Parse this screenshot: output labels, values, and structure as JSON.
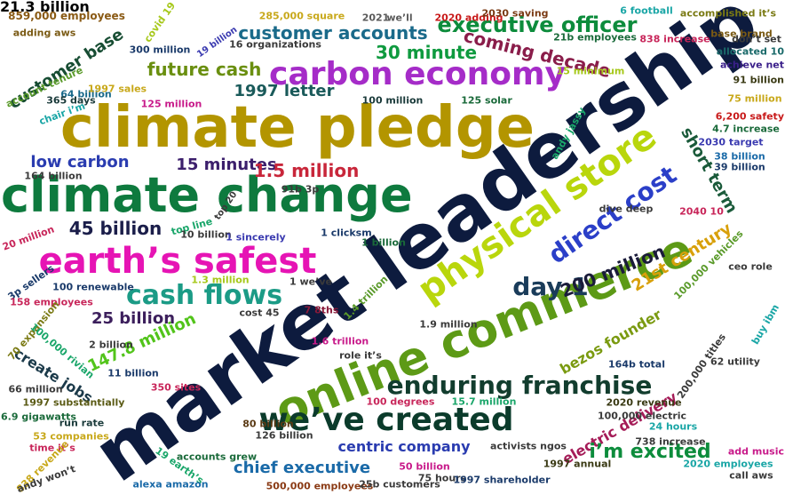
{
  "words": [
    {
      "text": "market leadership",
      "color": "#0d1b3e",
      "rotate": -35
    },
    {
      "text": "climate pledge",
      "color": "#b39500",
      "rotate": 0
    },
    {
      "text": "online commerce",
      "color": "#5d9a16",
      "rotate": -22
    },
    {
      "text": "climate change",
      "color": "#0e7a3e",
      "rotate": 0
    },
    {
      "text": "earth’s safest",
      "color": "#e614b4",
      "rotate": 0
    },
    {
      "text": "physical store",
      "color": "#b9d60c",
      "rotate": -35
    },
    {
      "text": "we’ve created",
      "color": "#0b3b2b",
      "rotate": 0
    },
    {
      "text": "carbon economy",
      "color": "#a52cc8",
      "rotate": 0
    },
    {
      "text": "enduring franchise",
      "color": "#123d2e",
      "rotate": 0
    },
    {
      "text": "direct cost",
      "color": "#2b3fc8",
      "rotate": -35
    },
    {
      "text": "cash flows",
      "color": "#1b9b86",
      "rotate": 0
    },
    {
      "text": "executive officer",
      "color": "#0d8c3c",
      "rotate": 0
    },
    {
      "text": "coming decade",
      "color": "#8a1d4a",
      "rotate": 14
    },
    {
      "text": "customer accounts",
      "color": "#1a6a8a",
      "rotate": 0
    },
    {
      "text": "customer base",
      "color": "#174d33",
      "rotate": -33
    },
    {
      "text": "future cash",
      "color": "#6a8f10",
      "rotate": 0
    },
    {
      "text": "30 minute",
      "color": "#0f9a3f",
      "rotate": 0
    },
    {
      "text": "1997 letter",
      "color": "#1a5a5a",
      "rotate": 0
    },
    {
      "text": "low carbon",
      "color": "#2a3cb0",
      "rotate": 0
    },
    {
      "text": "15 minutes",
      "color": "#3c1f6c",
      "rotate": 0
    },
    {
      "text": "1.5 million",
      "color": "#c8263a",
      "rotate": 0
    },
    {
      "text": "45 billion",
      "color": "#1b1e4a",
      "rotate": 0
    },
    {
      "text": "day 1",
      "color": "#1a3c5a",
      "rotate": 0
    },
    {
      "text": "200 million",
      "color": "#1a1b3a",
      "rotate": -22
    },
    {
      "text": "21st century",
      "color": "#d8a00a",
      "rotate": -32
    },
    {
      "text": "short term",
      "color": "#1a5a3a",
      "rotate": 60
    },
    {
      "text": "25 billion",
      "color": "#3c1f5c",
      "rotate": 0
    },
    {
      "text": "147.8 million",
      "color": "#52c41a",
      "rotate": -25
    },
    {
      "text": "create jobs",
      "color": "#1b3a4a",
      "rotate": 32
    },
    {
      "text": "bezos founder",
      "color": "#7a9a10",
      "rotate": -30
    },
    {
      "text": "centric company",
      "color": "#2a3cb0",
      "rotate": 0
    },
    {
      "text": "chief executive",
      "color": "#1a6aa8",
      "rotate": 0
    },
    {
      "text": "electric delivery",
      "color": "#a51c58",
      "rotate": -30
    },
    {
      "text": "i’m excited",
      "color": "#0d8c3c",
      "rotate": 0
    },
    {
      "text": "859,000 employees",
      "color": "#8a5a14",
      "rotate": 0
    },
    {
      "text": "adding aws",
      "color": "#7a5a14",
      "rotate": 0
    },
    {
      "text": "account tenure",
      "color": "#5a9a2a",
      "rotate": -25
    },
    {
      "text": "covid 19",
      "color": "#a6c81a",
      "rotate": -55
    },
    {
      "text": "285,000 square",
      "color": "#c8a81a",
      "rotate": 0
    },
    {
      "text": "2021",
      "color": "#5a5a5a",
      "rotate": 0
    },
    {
      "text": "we’ll",
      "color": "#5a5a5a",
      "rotate": 0
    },
    {
      "text": "2020 adding",
      "color": "#c81a1a",
      "rotate": 0
    },
    {
      "text": "2030 saving",
      "color": "#7a3a14",
      "rotate": 0
    },
    {
      "text": "6 football",
      "color": "#1aa6a6",
      "rotate": 0
    },
    {
      "text": "accomplished it’s",
      "color": "#7a7a14",
      "rotate": 0
    },
    {
      "text": "base brand",
      "color": "#7a5a14",
      "rotate": 0
    },
    {
      "text": "21b employees",
      "color": "#1a6a3a",
      "rotate": 0
    },
    {
      "text": "838 increase",
      "color": "#c8265a",
      "rotate": 0
    },
    {
      "text": "don’t set",
      "color": "#3a3a3a",
      "rotate": 0
    },
    {
      "text": "allocated 10",
      "color": "#1a6a6a",
      "rotate": 0
    },
    {
      "text": "achieve net",
      "color": "#3a1f8a",
      "rotate": 0
    },
    {
      "text": "19 billion",
      "color": "#3a3ab0",
      "rotate": -35
    },
    {
      "text": "300 million",
      "color": "#1a3a6a",
      "rotate": 0
    },
    {
      "text": "16 organizations",
      "color": "#3a3a3a",
      "rotate": 0
    },
    {
      "text": "15 minimum",
      "color": "#a6c81a",
      "rotate": 0
    },
    {
      "text": "chair i’m",
      "color": "#1aa6a6",
      "rotate": -20
    },
    {
      "text": "64 billion",
      "color": "#1a6a8a",
      "rotate": 0
    },
    {
      "text": "1997 sales",
      "color": "#c8a81a",
      "rotate": 0
    },
    {
      "text": "365 days",
      "color": "#1a3a3a",
      "rotate": 0
    },
    {
      "text": "125 million",
      "color": "#c81a8a",
      "rotate": 0
    },
    {
      "text": "100 million",
      "color": "#1a3a3a",
      "rotate": 0
    },
    {
      "text": "125 solar",
      "color": "#1a6a3a",
      "rotate": 0
    },
    {
      "text": "91 billion",
      "color": "#3a3a14",
      "rotate": 0
    },
    {
      "text": "75 million",
      "color": "#c8a81a",
      "rotate": 0
    },
    {
      "text": "andy jassy",
      "color": "#1aa66a",
      "rotate": -60
    },
    {
      "text": "6,200 safety",
      "color": "#c81a1a",
      "rotate": 0
    },
    {
      "text": "4.7 increase",
      "color": "#1a6a3a",
      "rotate": 0
    },
    {
      "text": "2030 target",
      "color": "#3a3ab0",
      "rotate": 0
    },
    {
      "text": "38 billion",
      "color": "#1a6aa8",
      "rotate": 0
    },
    {
      "text": "39 billion",
      "color": "#1a3a6a",
      "rotate": 0
    },
    {
      "text": "164 billion",
      "color": "#3a3a3a",
      "rotate": 0
    },
    {
      "text": "91b 3p",
      "color": "#3a3a3a",
      "rotate": 0
    },
    {
      "text": "dive deep",
      "color": "#3a3a3a",
      "rotate": 0
    },
    {
      "text": "2040 10",
      "color": "#c8265a",
      "rotate": 0
    },
    {
      "text": "20 million",
      "color": "#c8265a",
      "rotate": -20
    },
    {
      "text": "top 20",
      "color": "#3a3a3a",
      "rotate": -55
    },
    {
      "text": "top line",
      "color": "#1aa66a",
      "rotate": -15
    },
    {
      "text": "10 billion",
      "color": "#3a3a3a",
      "rotate": 0
    },
    {
      "text": "1 sincerely",
      "color": "#3a3ab0",
      "rotate": 0
    },
    {
      "text": "1 clicksm",
      "color": "#1a3a6a",
      "rotate": 0
    },
    {
      "text": "1 billion",
      "color": "#1a6a3a",
      "rotate": 0
    },
    {
      "text": "100,000 vehicles",
      "color": "#5a9a2a",
      "rotate": -45
    },
    {
      "text": "ceo role",
      "color": "#3a3a3a",
      "rotate": 0
    },
    {
      "text": "3p sellers",
      "color": "#1a3a6a",
      "rotate": -35
    },
    {
      "text": "100 renewable",
      "color": "#1a3a6a",
      "rotate": 0
    },
    {
      "text": "1.3 million",
      "color": "#a6c81a",
      "rotate": 0
    },
    {
      "text": "1 we’ve",
      "color": "#3a3a3a",
      "rotate": 0
    },
    {
      "text": "158 employees",
      "color": "#c8265a",
      "rotate": 0
    },
    {
      "text": "cost 45",
      "color": "#3a3a3a",
      "rotate": 0
    },
    {
      "text": "7 8ths",
      "color": "#8a1a3a",
      "rotate": 0
    },
    {
      "text": "1.4 trillion",
      "color": "#5a9a2a",
      "rotate": -45
    },
    {
      "text": "1.9 million",
      "color": "#3a3a3a",
      "rotate": 0
    },
    {
      "text": "200,000 titles",
      "color": "#3a3a3a",
      "rotate": -55
    },
    {
      "text": "buy ibm",
      "color": "#1aa6a6",
      "rotate": -60
    },
    {
      "text": "70 expansion",
      "color": "#7a7a14",
      "rotate": -50
    },
    {
      "text": "100,000 rivian",
      "color": "#1aa66a",
      "rotate": 40
    },
    {
      "text": "2 billion",
      "color": "#3a3a3a",
      "rotate": 0
    },
    {
      "text": "1.6 trillion",
      "color": "#c81a8a",
      "rotate": 0
    },
    {
      "text": "role it’s",
      "color": "#3a3a3a",
      "rotate": 0
    },
    {
      "text": "164b total",
      "color": "#1a3a6a",
      "rotate": 0
    },
    {
      "text": "62 utility",
      "color": "#3a3a3a",
      "rotate": 0
    },
    {
      "text": "11 billion",
      "color": "#1a3a6a",
      "rotate": 0
    },
    {
      "text": "66 million",
      "color": "#3a3a3a",
      "rotate": 0
    },
    {
      "text": "350 sites",
      "color": "#c8265a",
      "rotate": 0
    },
    {
      "text": "1997 substantially",
      "color": "#5a5a14",
      "rotate": 0
    },
    {
      "text": "100 degrees",
      "color": "#c8265a",
      "rotate": 0
    },
    {
      "text": "15.7 million",
      "color": "#1aa66a",
      "rotate": 0
    },
    {
      "text": "2020 revenue",
      "color": "#3a3a14",
      "rotate": 0
    },
    {
      "text": "6.9 gigawatts",
      "color": "#1a6a3a",
      "rotate": 0
    },
    {
      "text": "run rate",
      "color": "#1a3a3a",
      "rotate": 0
    },
    {
      "text": "53 companies",
      "color": "#c8a81a",
      "rotate": 0
    },
    {
      "text": "80 billion",
      "color": "#5a3a14",
      "rotate": 0
    },
    {
      "text": "126 billion",
      "color": "#3a3a3a",
      "rotate": 0
    },
    {
      "text": "100,000 electric",
      "color": "#3a3a3a",
      "rotate": 0
    },
    {
      "text": "24 hours",
      "color": "#1aa6a6",
      "rotate": 0
    },
    {
      "text": "738 increase",
      "color": "#3a3a3a",
      "rotate": 0
    },
    {
      "text": "add music",
      "color": "#c81a8a",
      "rotate": 0
    },
    {
      "text": "time it’s",
      "color": "#c8265a",
      "rotate": 0
    },
    {
      "text": "activists ngos",
      "color": "#3a3a3a",
      "rotate": 0
    },
    {
      "text": "1997 annual",
      "color": "#3a3a14",
      "rotate": 0
    },
    {
      "text": "2020 employees",
      "color": "#1aa6a6",
      "rotate": 0
    },
    {
      "text": "838 revenue",
      "color": "#c8a81a",
      "rotate": -45
    },
    {
      "text": "accounts grew",
      "color": "#1a6a3a",
      "rotate": 0
    },
    {
      "text": "19 earth’s",
      "color": "#1aa66a",
      "rotate": 35
    },
    {
      "text": "50 billion",
      "color": "#c81a8a",
      "rotate": 0
    },
    {
      "text": "75 hours",
      "color": "#3a3a3a",
      "rotate": 0
    },
    {
      "text": "1997 shareholder",
      "color": "#1a3a6a",
      "rotate": 0
    },
    {
      "text": "call aws",
      "color": "#3a3a3a",
      "rotate": 0
    },
    {
      "text": "andy won’t",
      "color": "#3a3a3a",
      "rotate": -20
    },
    {
      "text": "alexa amazon",
      "color": "#1a6aa8",
      "rotate": 0
    },
    {
      "text": "500,000 employees",
      "color": "#8a3a14",
      "rotate": 0
    },
    {
      "text": "25b customers",
      "color": "#3a3a3a",
      "rotate": 0
    },
    {
      "text": "21.3 billion",
      "color": "#c8265a",
      "rotate": 0
    }
  ]
}
